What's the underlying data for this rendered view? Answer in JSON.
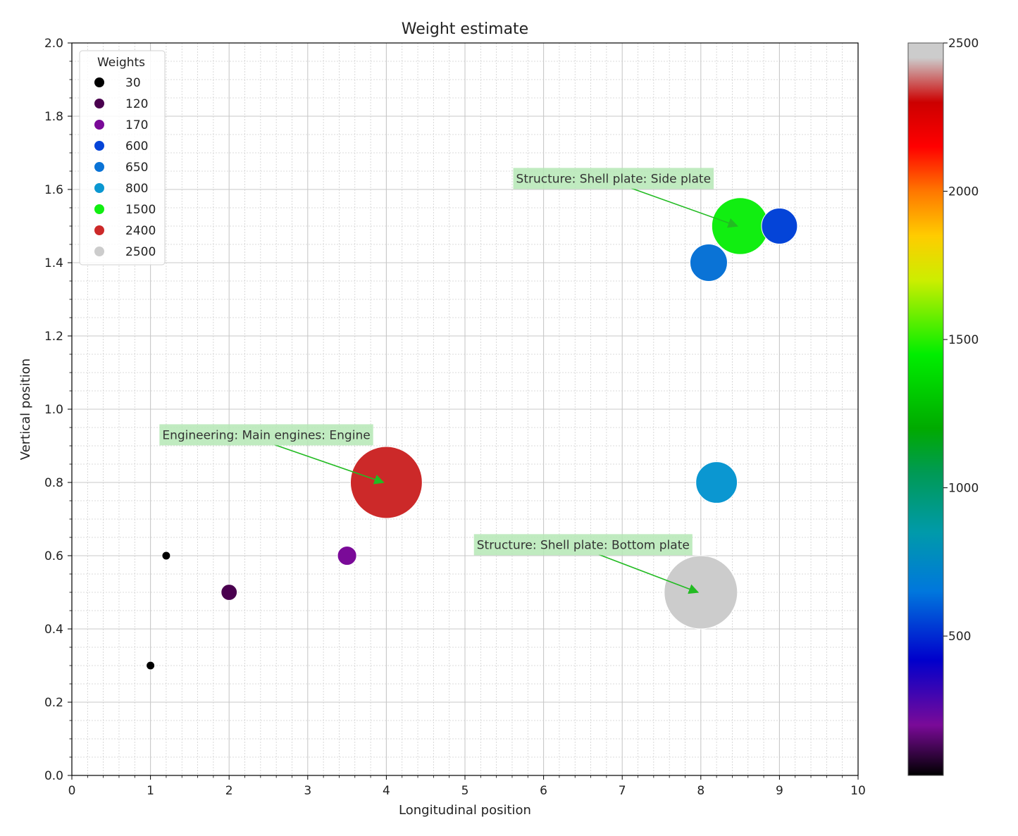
{
  "chart_data": {
    "type": "scatter",
    "title": "Weight estimate",
    "xlabel": "Longitudinal position",
    "ylabel": "Vertical position",
    "xlim": [
      0,
      10
    ],
    "ylim": [
      0,
      2.0
    ],
    "xticks": [
      "0",
      "1",
      "2",
      "3",
      "4",
      "5",
      "6",
      "7",
      "8",
      "9",
      "10"
    ],
    "yticks": [
      "0.0",
      "0.2",
      "0.4",
      "0.6",
      "0.8",
      "1.0",
      "1.2",
      "1.4",
      "1.6",
      "1.8",
      "2.0"
    ],
    "grid": true,
    "minor_grid": true,
    "points": [
      {
        "x": 1.0,
        "y": 0.3,
        "weight": 30,
        "color": "#000000"
      },
      {
        "x": 1.2,
        "y": 0.6,
        "weight": 30,
        "color": "#000000"
      },
      {
        "x": 2.0,
        "y": 0.5,
        "weight": 120,
        "color": "#4a004f"
      },
      {
        "x": 3.5,
        "y": 0.6,
        "weight": 170,
        "color": "#7a0a98"
      },
      {
        "x": 4.0,
        "y": 0.8,
        "weight": 2400,
        "color": "#cc2929"
      },
      {
        "x": 8.0,
        "y": 0.5,
        "weight": 2500,
        "color": "#cccccc"
      },
      {
        "x": 8.2,
        "y": 0.8,
        "weight": 800,
        "color": "#0b97d1"
      },
      {
        "x": 8.1,
        "y": 1.4,
        "weight": 650,
        "color": "#0a73d6"
      },
      {
        "x": 8.5,
        "y": 1.5,
        "weight": 1500,
        "color": "#11ee11"
      },
      {
        "x": 9.0,
        "y": 1.5,
        "weight": 600,
        "color": "#0444d8"
      }
    ],
    "legend": {
      "title": "Weights",
      "location": "upper-left",
      "entries": [
        {
          "label": "30",
          "color": "#000000"
        },
        {
          "label": "120",
          "color": "#4a004f"
        },
        {
          "label": "170",
          "color": "#7a0a98"
        },
        {
          "label": "600",
          "color": "#0444d8"
        },
        {
          "label": "650",
          "color": "#0a73d6"
        },
        {
          "label": "800",
          "color": "#0b97d1"
        },
        {
          "label": "1500",
          "color": "#11ee11"
        },
        {
          "label": "2400",
          "color": "#cc2929"
        },
        {
          "label": "2500",
          "color": "#cccccc"
        }
      ]
    },
    "annotations": [
      {
        "text": "Structure: Shell plate: Side plate",
        "target": [
          8.5,
          1.5
        ],
        "text_pos": [
          5.65,
          1.63
        ]
      },
      {
        "text": "Engineering: Main engines: Engine",
        "target": [
          4.0,
          0.8
        ],
        "text_pos": [
          1.15,
          0.93
        ]
      },
      {
        "text": "Structure: Shell plate: Bottom plate",
        "target": [
          8.0,
          0.5
        ],
        "text_pos": [
          5.15,
          0.63
        ]
      }
    ],
    "colorbar": {
      "min": 30,
      "max": 2500,
      "ticks": [
        "500",
        "1000",
        "1500",
        "2000",
        "2500"
      ],
      "colormap": "nipy_spectral",
      "stops": [
        {
          "value": 30,
          "color": "#000000"
        },
        {
          "value": 200,
          "color": "#7a0a98"
        },
        {
          "value": 420,
          "color": "#0000cc"
        },
        {
          "value": 650,
          "color": "#0077dd"
        },
        {
          "value": 850,
          "color": "#009aaa"
        },
        {
          "value": 1050,
          "color": "#009a55"
        },
        {
          "value": 1200,
          "color": "#00aa00"
        },
        {
          "value": 1450,
          "color": "#00ee00"
        },
        {
          "value": 1700,
          "color": "#ccee00"
        },
        {
          "value": 1850,
          "color": "#ffcc00"
        },
        {
          "value": 2000,
          "color": "#ff7700"
        },
        {
          "value": 2150,
          "color": "#ff0000"
        },
        {
          "value": 2300,
          "color": "#cc0000"
        },
        {
          "value": 2450,
          "color": "#cccccc"
        },
        {
          "value": 2500,
          "color": "#cccccc"
        }
      ]
    }
  }
}
